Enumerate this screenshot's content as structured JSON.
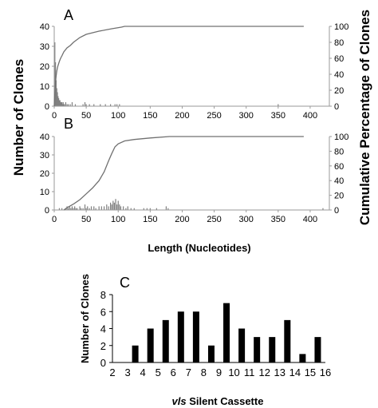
{
  "figure": {
    "y_left_label": "Number of Clones",
    "y_right_label": "Cumulative Percentage of Clones",
    "x_label_ab": "Length (Nucleotides)",
    "c_ylabel": "Number of Clones",
    "c_xlabel_italic": "vls",
    "c_xlabel_rest": " Silent Cassette"
  },
  "chart_data": [
    {
      "panel": "A",
      "type": "bar",
      "overlay": "line",
      "xlim": [
        0,
        430
      ],
      "ylim": [
        0,
        40
      ],
      "y2lim": [
        0,
        100
      ],
      "xticks": [
        0,
        50,
        100,
        150,
        200,
        250,
        300,
        350,
        400
      ],
      "yticks": [
        0,
        10,
        20,
        30,
        40
      ],
      "y2ticks": [
        0,
        20,
        40,
        60,
        80,
        100
      ],
      "bars": [
        {
          "x": 1,
          "y": 32
        },
        {
          "x": 2,
          "y": 22
        },
        {
          "x": 3,
          "y": 13
        },
        {
          "x": 4,
          "y": 9
        },
        {
          "x": 5,
          "y": 7
        },
        {
          "x": 6,
          "y": 5
        },
        {
          "x": 7,
          "y": 4
        },
        {
          "x": 8,
          "y": 3
        },
        {
          "x": 9,
          "y": 3
        },
        {
          "x": 10,
          "y": 2
        },
        {
          "x": 11,
          "y": 2
        },
        {
          "x": 12,
          "y": 2
        },
        {
          "x": 13,
          "y": 1
        },
        {
          "x": 14,
          "y": 2
        },
        {
          "x": 15,
          "y": 1
        },
        {
          "x": 16,
          "y": 1
        },
        {
          "x": 18,
          "y": 2
        },
        {
          "x": 20,
          "y": 1
        },
        {
          "x": 22,
          "y": 1
        },
        {
          "x": 25,
          "y": 1
        },
        {
          "x": 28,
          "y": 2
        },
        {
          "x": 33,
          "y": 1
        },
        {
          "x": 45,
          "y": 1
        },
        {
          "x": 48,
          "y": 2
        },
        {
          "x": 50,
          "y": 1
        },
        {
          "x": 55,
          "y": 1
        },
        {
          "x": 62,
          "y": 1
        },
        {
          "x": 72,
          "y": 1
        },
        {
          "x": 80,
          "y": 1
        },
        {
          "x": 88,
          "y": 1
        },
        {
          "x": 95,
          "y": 1
        },
        {
          "x": 98,
          "y": 1
        },
        {
          "x": 102,
          "y": 1
        },
        {
          "x": 350,
          "y": 1
        }
      ],
      "cumulative": [
        [
          0,
          0
        ],
        [
          1,
          17
        ],
        [
          2,
          30
        ],
        [
          3,
          38
        ],
        [
          4,
          44
        ],
        [
          5,
          48
        ],
        [
          6,
          51
        ],
        [
          8,
          56
        ],
        [
          10,
          60
        ],
        [
          12,
          63
        ],
        [
          15,
          68
        ],
        [
          20,
          73
        ],
        [
          25,
          76
        ],
        [
          30,
          80
        ],
        [
          40,
          86
        ],
        [
          50,
          90
        ],
        [
          70,
          94
        ],
        [
          90,
          97
        ],
        [
          105,
          99
        ],
        [
          110,
          100
        ],
        [
          390,
          100
        ]
      ]
    },
    {
      "panel": "B",
      "type": "bar",
      "overlay": "line",
      "xlim": [
        0,
        430
      ],
      "ylim": [
        0,
        40
      ],
      "y2lim": [
        0,
        100
      ],
      "xticks": [
        0,
        50,
        100,
        150,
        200,
        250,
        300,
        350,
        400
      ],
      "yticks": [
        0,
        10,
        20,
        30,
        40
      ],
      "y2ticks": [
        0,
        20,
        40,
        60,
        80,
        100
      ],
      "bars": [
        {
          "x": 8,
          "y": 1
        },
        {
          "x": 12,
          "y": 1
        },
        {
          "x": 18,
          "y": 1
        },
        {
          "x": 20,
          "y": 2
        },
        {
          "x": 22,
          "y": 1
        },
        {
          "x": 24,
          "y": 2
        },
        {
          "x": 26,
          "y": 1
        },
        {
          "x": 28,
          "y": 2
        },
        {
          "x": 30,
          "y": 1
        },
        {
          "x": 32,
          "y": 2
        },
        {
          "x": 34,
          "y": 1
        },
        {
          "x": 36,
          "y": 1
        },
        {
          "x": 40,
          "y": 2
        },
        {
          "x": 42,
          "y": 1
        },
        {
          "x": 45,
          "y": 1
        },
        {
          "x": 48,
          "y": 3
        },
        {
          "x": 50,
          "y": 1
        },
        {
          "x": 52,
          "y": 2
        },
        {
          "x": 55,
          "y": 1
        },
        {
          "x": 58,
          "y": 2
        },
        {
          "x": 62,
          "y": 2
        },
        {
          "x": 65,
          "y": 1
        },
        {
          "x": 70,
          "y": 2
        },
        {
          "x": 74,
          "y": 2
        },
        {
          "x": 78,
          "y": 2
        },
        {
          "x": 82,
          "y": 3
        },
        {
          "x": 85,
          "y": 2
        },
        {
          "x": 88,
          "y": 4
        },
        {
          "x": 90,
          "y": 3
        },
        {
          "x": 92,
          "y": 5
        },
        {
          "x": 94,
          "y": 4
        },
        {
          "x": 96,
          "y": 6
        },
        {
          "x": 98,
          "y": 3
        },
        {
          "x": 100,
          "y": 5
        },
        {
          "x": 102,
          "y": 3
        },
        {
          "x": 104,
          "y": 2
        },
        {
          "x": 108,
          "y": 2
        },
        {
          "x": 112,
          "y": 1
        },
        {
          "x": 115,
          "y": 2
        },
        {
          "x": 120,
          "y": 1
        },
        {
          "x": 125,
          "y": 1
        },
        {
          "x": 140,
          "y": 1
        },
        {
          "x": 145,
          "y": 1
        },
        {
          "x": 150,
          "y": 1
        },
        {
          "x": 160,
          "y": 1
        },
        {
          "x": 175,
          "y": 2
        },
        {
          "x": 178,
          "y": 1
        },
        {
          "x": 420,
          "y": 1
        }
      ],
      "cumulative": [
        [
          15,
          0
        ],
        [
          20,
          3
        ],
        [
          30,
          8
        ],
        [
          40,
          14
        ],
        [
          50,
          22
        ],
        [
          60,
          30
        ],
        [
          70,
          40
        ],
        [
          78,
          52
        ],
        [
          85,
          67
        ],
        [
          90,
          77
        ],
        [
          95,
          86
        ],
        [
          100,
          90
        ],
        [
          110,
          94
        ],
        [
          125,
          96
        ],
        [
          150,
          98
        ],
        [
          180,
          100
        ],
        [
          390,
          100
        ]
      ]
    },
    {
      "panel": "C",
      "type": "bar",
      "categories": [
        "2",
        "3",
        "4",
        "5",
        "6",
        "7",
        "8",
        "9",
        "10",
        "11",
        "12",
        "13",
        "14",
        "15",
        "16"
      ],
      "values": [
        0,
        2,
        4,
        5,
        6,
        6,
        2,
        7,
        4,
        3,
        3,
        5,
        1,
        3,
        0
      ],
      "ylim": [
        0,
        8
      ],
      "yticks": [
        0,
        2,
        4,
        6,
        8
      ]
    }
  ]
}
